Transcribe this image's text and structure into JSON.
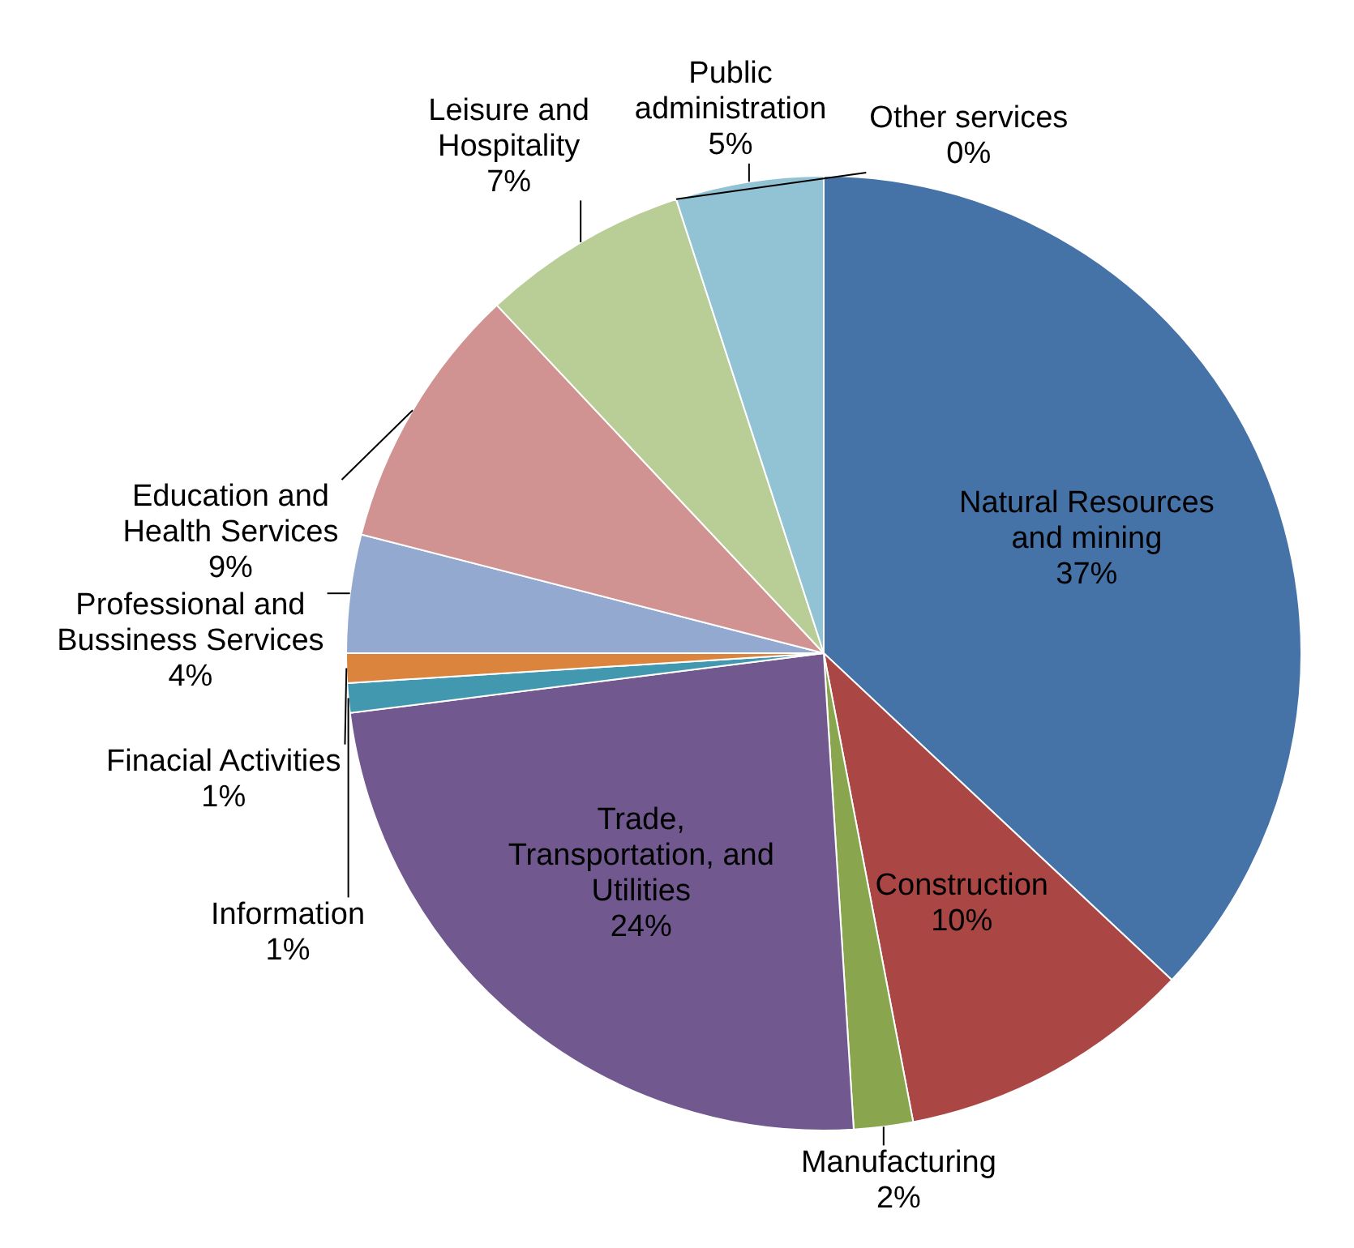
{
  "chart_data": {
    "type": "pie",
    "categories": [
      "Natural Resources and mining",
      "Construction",
      "Manufacturing",
      "Trade, Transportation, and Utilities",
      "Information",
      "Finacial Activities",
      "Professional and Bussiness Services",
      "Education and Health Services",
      "Leisure and Hospitality",
      "Other services",
      "Public administration"
    ],
    "values": [
      37,
      10,
      2,
      24,
      1,
      1,
      4,
      9,
      7,
      0,
      5
    ],
    "value_labels": [
      "37%",
      "10%",
      "2%",
      "24%",
      "1%",
      "1%",
      "4%",
      "9%",
      "7%",
      "0%",
      "5%"
    ],
    "colors": [
      "#4572a7",
      "#aa4643",
      "#89a54e",
      "#71588f",
      "#4198af",
      "#db843d",
      "#93a9cf",
      "#d19392",
      "#b9cd96",
      "#a99bbd",
      "#92c3d4"
    ]
  }
}
